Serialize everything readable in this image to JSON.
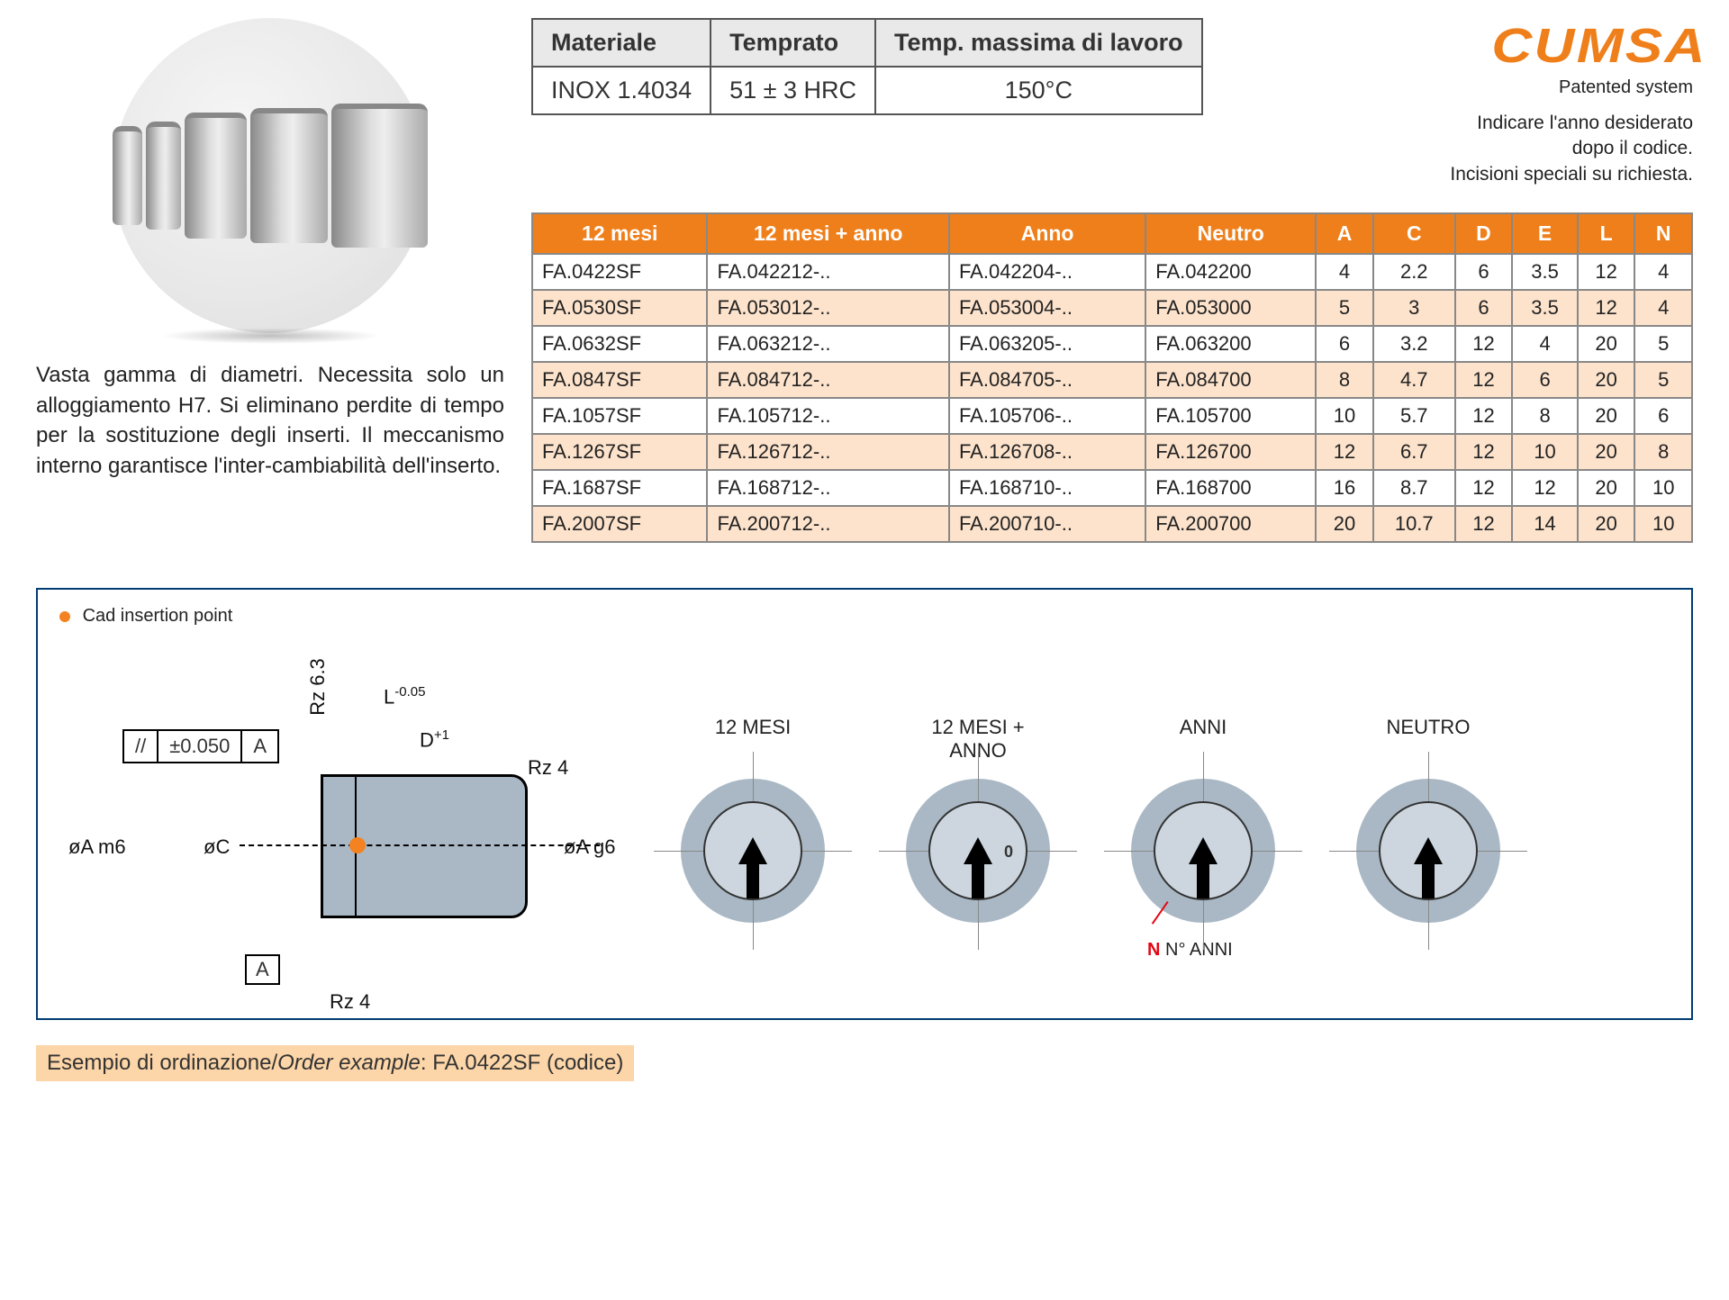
{
  "colors": {
    "accent": "#ef7f1a",
    "border": "#003b71",
    "shade": "#fde3cc",
    "part": "#a9b8c4",
    "cad": "#f58220"
  },
  "material_table": {
    "headers": [
      "Materiale",
      "Temprato",
      "Temp. massima di lavoro"
    ],
    "row": [
      "INOX 1.4034",
      "51 ± 3 HRC",
      "150°C"
    ]
  },
  "brand": {
    "logo": "CUMSA",
    "subtitle": "Patented system",
    "note_line1": "Indicare l'anno desiderato",
    "note_line2": "dopo il codice.",
    "note_line3": "Incisioni speciali su richiesta."
  },
  "description": "Vasta gamma di diametri. Necessita solo un alloggiamento H7. Si eliminano perdite di tempo per la sostituzione degli inserti. Il meccanismo interno garantisce l'inter-cambiabilità dell'inserto.",
  "data_table": {
    "headers": [
      "12 mesi",
      "12 mesi + anno",
      "Anno",
      "Neutro",
      "A",
      "C",
      "D",
      "E",
      "L",
      "N"
    ],
    "rows": [
      [
        "FA.0422SF",
        "FA.042212-..",
        "FA.042204-..",
        "FA.042200",
        "4",
        "2.2",
        "6",
        "3.5",
        "12",
        "4"
      ],
      [
        "FA.0530SF",
        "FA.053012-..",
        "FA.053004-..",
        "FA.053000",
        "5",
        "3",
        "6",
        "3.5",
        "12",
        "4"
      ],
      [
        "FA.0632SF",
        "FA.063212-..",
        "FA.063205-..",
        "FA.063200",
        "6",
        "3.2",
        "12",
        "4",
        "20",
        "5"
      ],
      [
        "FA.0847SF",
        "FA.084712-..",
        "FA.084705-..",
        "FA.084700",
        "8",
        "4.7",
        "12",
        "6",
        "20",
        "5"
      ],
      [
        "FA.1057SF",
        "FA.105712-..",
        "FA.105706-..",
        "FA.105700",
        "10",
        "5.7",
        "12",
        "8",
        "20",
        "6"
      ],
      [
        "FA.1267SF",
        "FA.126712-..",
        "FA.126708-..",
        "FA.126700",
        "12",
        "6.7",
        "12",
        "10",
        "20",
        "8"
      ],
      [
        "FA.1687SF",
        "FA.168712-..",
        "FA.168710-..",
        "FA.168700",
        "16",
        "8.7",
        "12",
        "12",
        "20",
        "10"
      ],
      [
        "FA.2007SF",
        "FA.200712-..",
        "FA.200710-..",
        "FA.200700",
        "20",
        "10.7",
        "12",
        "14",
        "20",
        "10"
      ]
    ]
  },
  "diagram": {
    "cad_label": "Cad insertion point",
    "L": "L",
    "L_tol": "-0.05",
    "D": "D",
    "D_tol": "+1",
    "Rz63": "Rz 6.3",
    "Rz4a": "Rz 4",
    "Rz4b": "Rz 4",
    "tol_par": "//",
    "tol_val": "±0.050",
    "tol_ref": "A",
    "phiA_m6": "øA m6",
    "phiC": "øC",
    "phiA_g6": "øA g6",
    "datum": "A",
    "stamps": {
      "s1": "12 MESI",
      "s2_l1": "12 MESI +",
      "s2_l2": "ANNO",
      "s3": "ANNI",
      "s4": "NEUTRO",
      "n_red": "N",
      "n_text": "N° ANNI",
      "inner_zero": "0"
    }
  },
  "order_example": {
    "label_it": "Esempio di ordinazione/",
    "label_en": "Order example",
    "value": ": FA.0422SF (codice)"
  }
}
